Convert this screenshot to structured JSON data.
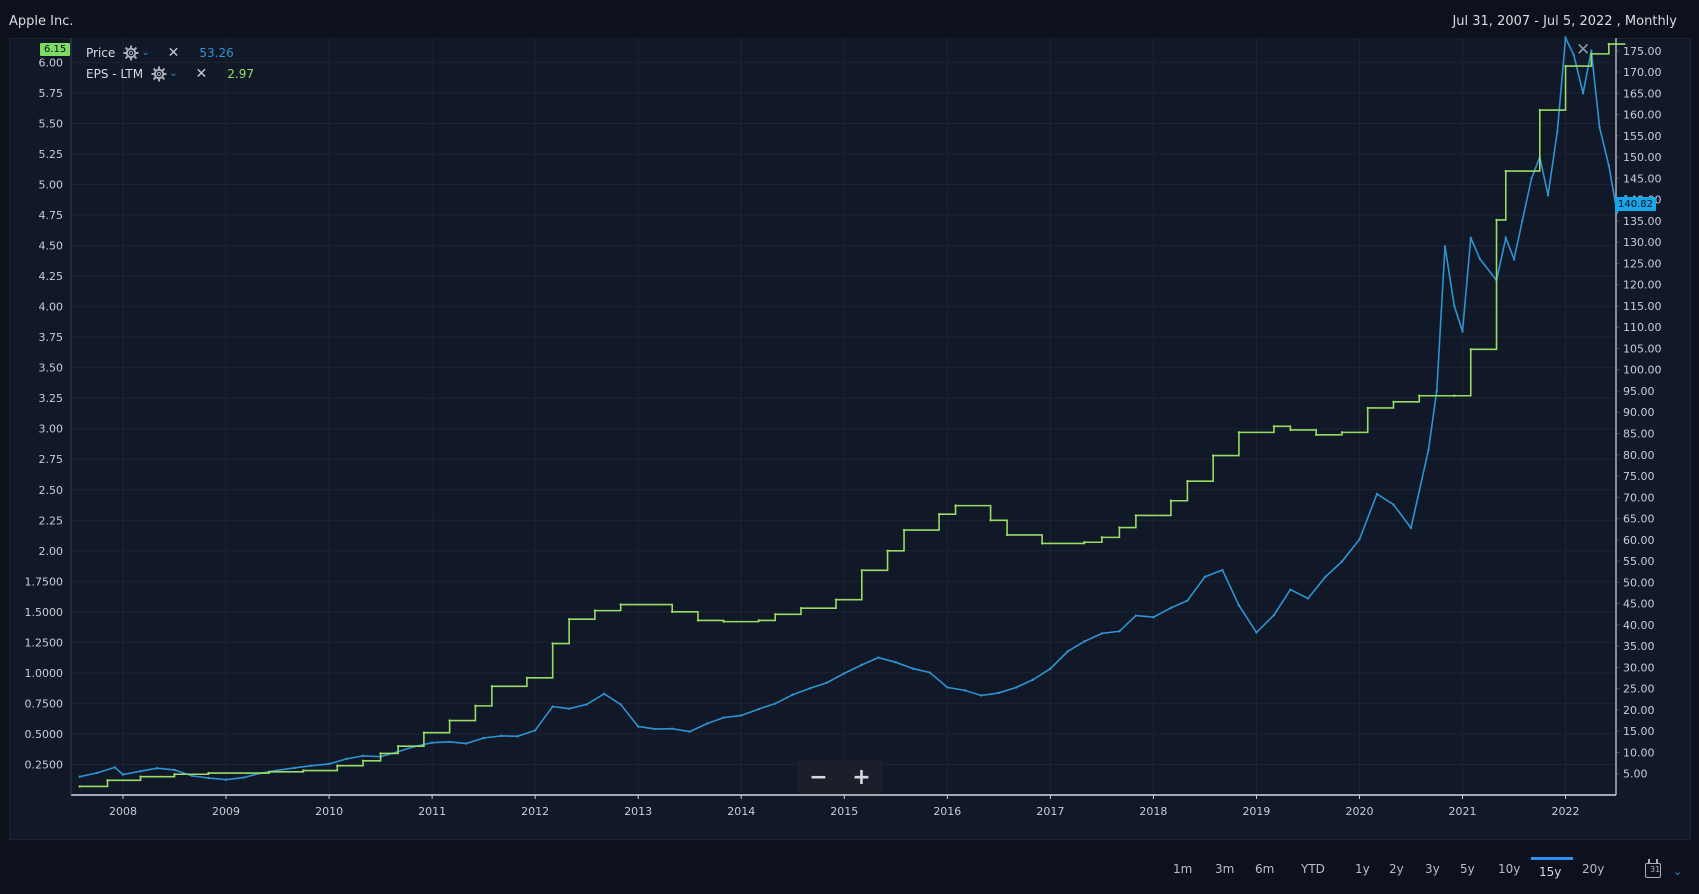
{
  "header": {
    "company": "Apple Inc.",
    "range": "Jul 31, 2007 - Jul 5, 2022 , Monthly"
  },
  "legend": {
    "price": {
      "label": "Price",
      "value": "53.26"
    },
    "eps": {
      "label": "EPS - LTM",
      "value": "2.97"
    }
  },
  "badges": {
    "left": "6.15",
    "right": "140.82"
  },
  "zoom": {
    "minus": "−",
    "plus": "+"
  },
  "periods": [
    "1m",
    "3m",
    "6m",
    "YTD",
    "1y",
    "2y",
    "3y",
    "5y",
    "10y",
    "15y",
    "20y"
  ],
  "active_period": "15y",
  "colors": {
    "price": "#2f93d1",
    "eps": "#98dc63",
    "accent": "#2d8ef0"
  },
  "icons": {
    "settings": "gear-icon",
    "remove": "close-icon",
    "calendar": "calendar-icon"
  },
  "chart_data": {
    "type": "line",
    "grid": true,
    "x_ticks": [
      "2008",
      "2009",
      "2010",
      "2011",
      "2012",
      "2013",
      "2014",
      "2015",
      "2016",
      "2017",
      "2018",
      "2019",
      "2020",
      "2021",
      "2022"
    ],
    "y_left_ticks": [
      "0.2500",
      "0.5000",
      "0.7500",
      "1.0000",
      "1.2500",
      "1.5000",
      "1.7500",
      "2.00",
      "2.25",
      "2.50",
      "2.75",
      "3.00",
      "3.25",
      "3.50",
      "3.75",
      "4.00",
      "4.25",
      "4.50",
      "4.75",
      "5.00",
      "5.25",
      "5.50",
      "5.75",
      "6.00"
    ],
    "y_right_ticks": [
      "5.00",
      "10.00",
      "15.00",
      "20.00",
      "25.00",
      "30.00",
      "35.00",
      "40.00",
      "45.00",
      "50.00",
      "55.00",
      "60.00",
      "65.00",
      "70.00",
      "75.00",
      "80.00",
      "85.00",
      "90.00",
      "95.00",
      "100.00",
      "105.00",
      "110.00",
      "115.00",
      "120.00",
      "125.00",
      "130.00",
      "135.00",
      "140.00",
      "145.00",
      "150.00",
      "155.00",
      "160.00",
      "165.00",
      "170.00",
      "175.00"
    ],
    "ylim_left": [
      0,
      6.2
    ],
    "ylim_right": [
      0,
      178
    ],
    "series": [
      {
        "name": "Price",
        "axis": "right",
        "points": [
          [
            2007.58,
            4.3
          ],
          [
            2007.75,
            5.2
          ],
          [
            2007.92,
            6.5
          ],
          [
            2008.0,
            4.8
          ],
          [
            2008.17,
            5.6
          ],
          [
            2008.33,
            6.3
          ],
          [
            2008.5,
            5.9
          ],
          [
            2008.67,
            4.5
          ],
          [
            2008.83,
            4.0
          ],
          [
            2009.0,
            3.6
          ],
          [
            2009.17,
            4.1
          ],
          [
            2009.33,
            5.1
          ],
          [
            2009.5,
            5.8
          ],
          [
            2009.67,
            6.4
          ],
          [
            2009.83,
            6.9
          ],
          [
            2010.0,
            7.3
          ],
          [
            2010.17,
            8.5
          ],
          [
            2010.33,
            9.2
          ],
          [
            2010.5,
            9.0
          ],
          [
            2010.67,
            10.2
          ],
          [
            2010.83,
            11.4
          ],
          [
            2011.0,
            12.3
          ],
          [
            2011.17,
            12.5
          ],
          [
            2011.33,
            12.1
          ],
          [
            2011.5,
            13.4
          ],
          [
            2011.67,
            13.9
          ],
          [
            2011.83,
            13.8
          ],
          [
            2012.0,
            15.2
          ],
          [
            2012.17,
            20.8
          ],
          [
            2012.33,
            20.3
          ],
          [
            2012.5,
            21.3
          ],
          [
            2012.67,
            23.8
          ],
          [
            2012.83,
            21.3
          ],
          [
            2013.0,
            16.1
          ],
          [
            2013.17,
            15.5
          ],
          [
            2013.33,
            15.6
          ],
          [
            2013.5,
            14.9
          ],
          [
            2013.67,
            16.8
          ],
          [
            2013.83,
            18.2
          ],
          [
            2014.0,
            18.7
          ],
          [
            2014.17,
            20.2
          ],
          [
            2014.33,
            21.5
          ],
          [
            2014.5,
            23.6
          ],
          [
            2014.67,
            25.1
          ],
          [
            2014.83,
            26.4
          ],
          [
            2015.0,
            28.6
          ],
          [
            2015.17,
            30.6
          ],
          [
            2015.33,
            32.3
          ],
          [
            2015.5,
            31.2
          ],
          [
            2015.67,
            29.7
          ],
          [
            2015.83,
            28.8
          ],
          [
            2016.0,
            25.3
          ],
          [
            2016.17,
            24.6
          ],
          [
            2016.33,
            23.4
          ],
          [
            2016.5,
            24.0
          ],
          [
            2016.67,
            25.3
          ],
          [
            2016.83,
            27.1
          ],
          [
            2017.0,
            29.7
          ],
          [
            2017.17,
            33.8
          ],
          [
            2017.33,
            36.1
          ],
          [
            2017.5,
            38.0
          ],
          [
            2017.67,
            38.5
          ],
          [
            2017.83,
            42.2
          ],
          [
            2018.0,
            41.8
          ],
          [
            2018.17,
            44.0
          ],
          [
            2018.33,
            45.7
          ],
          [
            2018.5,
            51.3
          ],
          [
            2018.67,
            52.9
          ],
          [
            2018.83,
            44.6
          ],
          [
            2019.0,
            38.2
          ],
          [
            2019.17,
            42.3
          ],
          [
            2019.33,
            48.3
          ],
          [
            2019.5,
            46.2
          ],
          [
            2019.67,
            51.3
          ],
          [
            2019.83,
            54.9
          ],
          [
            2020.0,
            60.1
          ],
          [
            2020.17,
            70.8
          ],
          [
            2020.33,
            68.3
          ],
          [
            2020.5,
            62.8
          ],
          [
            2020.67,
            81.2
          ],
          [
            2020.75,
            95.0
          ],
          [
            2020.83,
            129.0
          ],
          [
            2020.92,
            115.0
          ],
          [
            2021.0,
            109.0
          ],
          [
            2021.08,
            131.0
          ],
          [
            2021.17,
            126.0
          ],
          [
            2021.33,
            121.0
          ],
          [
            2021.42,
            131.0
          ],
          [
            2021.5,
            126.0
          ],
          [
            2021.58,
            135.0
          ],
          [
            2021.67,
            145.0
          ],
          [
            2021.75,
            150.0
          ],
          [
            2021.83,
            141.0
          ],
          [
            2021.92,
            156.0
          ],
          [
            2022.0,
            178.0
          ],
          [
            2022.08,
            174.0
          ],
          [
            2022.17,
            165.0
          ],
          [
            2022.25,
            175.0
          ],
          [
            2022.33,
            157.0
          ],
          [
            2022.42,
            148.0
          ],
          [
            2022.5,
            137.0
          ],
          [
            2022.58,
            140.82
          ]
        ]
      },
      {
        "name": "EPS - LTM",
        "axis": "left",
        "steps": [
          [
            2007.58,
            0.07
          ],
          [
            2007.85,
            0.12
          ],
          [
            2008.17,
            0.15
          ],
          [
            2008.5,
            0.17
          ],
          [
            2008.83,
            0.18
          ],
          [
            2009.42,
            0.19
          ],
          [
            2009.75,
            0.2
          ],
          [
            2010.08,
            0.24
          ],
          [
            2010.33,
            0.28
          ],
          [
            2010.5,
            0.34
          ],
          [
            2010.67,
            0.4
          ],
          [
            2010.92,
            0.51
          ],
          [
            2011.17,
            0.61
          ],
          [
            2011.42,
            0.73
          ],
          [
            2011.58,
            0.89
          ],
          [
            2011.92,
            0.96
          ],
          [
            2012.17,
            1.24
          ],
          [
            2012.33,
            1.44
          ],
          [
            2012.58,
            1.51
          ],
          [
            2012.83,
            1.56
          ],
          [
            2013.33,
            1.5
          ],
          [
            2013.58,
            1.43
          ],
          [
            2013.83,
            1.42
          ],
          [
            2014.17,
            1.43
          ],
          [
            2014.33,
            1.48
          ],
          [
            2014.58,
            1.53
          ],
          [
            2014.92,
            1.6
          ],
          [
            2015.17,
            1.84
          ],
          [
            2015.42,
            2.0
          ],
          [
            2015.58,
            2.17
          ],
          [
            2015.92,
            2.3
          ],
          [
            2016.08,
            2.37
          ],
          [
            2016.42,
            2.25
          ],
          [
            2016.58,
            2.13
          ],
          [
            2016.92,
            2.06
          ],
          [
            2017.33,
            2.07
          ],
          [
            2017.5,
            2.11
          ],
          [
            2017.67,
            2.19
          ],
          [
            2017.83,
            2.29
          ],
          [
            2018.17,
            2.41
          ],
          [
            2018.33,
            2.57
          ],
          [
            2018.58,
            2.78
          ],
          [
            2018.83,
            2.97
          ],
          [
            2019.17,
            3.02
          ],
          [
            2019.33,
            2.99
          ],
          [
            2019.58,
            2.95
          ],
          [
            2019.83,
            2.97
          ],
          [
            2020.08,
            3.17
          ],
          [
            2020.33,
            3.22
          ],
          [
            2020.58,
            3.27
          ],
          [
            2020.92,
            3.27
          ],
          [
            2021.08,
            3.65
          ],
          [
            2021.33,
            4.71
          ],
          [
            2021.42,
            5.11
          ],
          [
            2021.75,
            5.61
          ],
          [
            2022.0,
            5.97
          ],
          [
            2022.25,
            6.07
          ],
          [
            2022.42,
            6.15
          ]
        ]
      }
    ]
  }
}
